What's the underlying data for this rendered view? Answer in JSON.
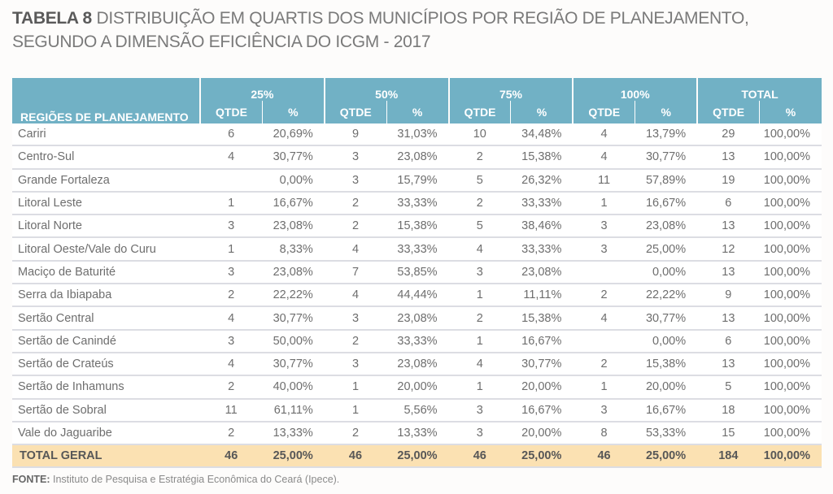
{
  "title": {
    "tag": "TABELA 8",
    "line1": " DISTRIBUIÇÃO EM QUARTIS DOS MUNICÍPIOS POR REGIÃO DE PLANEJAMENTO,",
    "line2": "SEGUNDO A DIMENSÃO EFICIÊNCIA DO ICGM - 2017"
  },
  "colors": {
    "header_bg": "#71b1c5",
    "header_text": "#ffffff",
    "total_row_bg": "#fbe1b2",
    "row_divider": "#dcdde3"
  },
  "table": {
    "region_header": "REGIÕES DE PLANEJAMENTO",
    "groups": [
      "25%",
      "50%",
      "75%",
      "100%",
      "TOTAL"
    ],
    "sub_headers": [
      "QTDE",
      "%"
    ],
    "rows": [
      {
        "region": "Cariri",
        "values": [
          "6",
          "20,69%",
          "9",
          "31,03%",
          "10",
          "34,48%",
          "4",
          "13,79%",
          "29",
          "100,00%"
        ]
      },
      {
        "region": "Centro-Sul",
        "values": [
          "4",
          "30,77%",
          "3",
          "23,08%",
          "2",
          "15,38%",
          "4",
          "30,77%",
          "13",
          "100,00%"
        ]
      },
      {
        "region": "Grande Fortaleza",
        "values": [
          "",
          "0,00%",
          "3",
          "15,79%",
          "5",
          "26,32%",
          "11",
          "57,89%",
          "19",
          "100,00%"
        ]
      },
      {
        "region": "Litoral Leste",
        "values": [
          "1",
          "16,67%",
          "2",
          "33,33%",
          "2",
          "33,33%",
          "1",
          "16,67%",
          "6",
          "100,00%"
        ]
      },
      {
        "region": "Litoral Norte",
        "values": [
          "3",
          "23,08%",
          "2",
          "15,38%",
          "5",
          "38,46%",
          "3",
          "23,08%",
          "13",
          "100,00%"
        ]
      },
      {
        "region": "Litoral Oeste/Vale do Curu",
        "values": [
          "1",
          "8,33%",
          "4",
          "33,33%",
          "4",
          "33,33%",
          "3",
          "25,00%",
          "12",
          "100,00%"
        ]
      },
      {
        "region": "Maciço de Baturité",
        "values": [
          "3",
          "23,08%",
          "7",
          "53,85%",
          "3",
          "23,08%",
          "",
          "0,00%",
          "13",
          "100,00%"
        ]
      },
      {
        "region": "Serra da Ibiapaba",
        "values": [
          "2",
          "22,22%",
          "4",
          "44,44%",
          "1",
          "11,11%",
          "2",
          "22,22%",
          "9",
          "100,00%"
        ]
      },
      {
        "region": "Sertão Central",
        "values": [
          "4",
          "30,77%",
          "3",
          "23,08%",
          "2",
          "15,38%",
          "4",
          "30,77%",
          "13",
          "100,00%"
        ]
      },
      {
        "region": "Sertão de Canindé",
        "values": [
          "3",
          "50,00%",
          "2",
          "33,33%",
          "1",
          "16,67%",
          "",
          "0,00%",
          "6",
          "100,00%"
        ]
      },
      {
        "region": "Sertão de Crateús",
        "values": [
          "4",
          "30,77%",
          "3",
          "23,08%",
          "4",
          "30,77%",
          "2",
          "15,38%",
          "13",
          "100,00%"
        ]
      },
      {
        "region": "Sertão de Inhamuns",
        "values": [
          "2",
          "40,00%",
          "1",
          "20,00%",
          "1",
          "20,00%",
          "1",
          "20,00%",
          "5",
          "100,00%"
        ]
      },
      {
        "region": "Sertão de Sobral",
        "values": [
          "11",
          "61,11%",
          "1",
          "5,56%",
          "3",
          "16,67%",
          "3",
          "16,67%",
          "18",
          "100,00%"
        ]
      },
      {
        "region": "Vale do Jaguaribe",
        "values": [
          "2",
          "13,33%",
          "2",
          "13,33%",
          "3",
          "20,00%",
          "8",
          "53,33%",
          "15",
          "100,00%"
        ]
      }
    ],
    "total": {
      "region": "TOTAL GERAL",
      "values": [
        "46",
        "25,00%",
        "46",
        "25,00%",
        "46",
        "25,00%",
        "46",
        "25,00%",
        "184",
        "100,00%"
      ]
    }
  },
  "source": {
    "label": "FONTE:",
    "text": " Instituto de Pesquisa e Estratégia Econômica do Ceará (Ipece)."
  }
}
